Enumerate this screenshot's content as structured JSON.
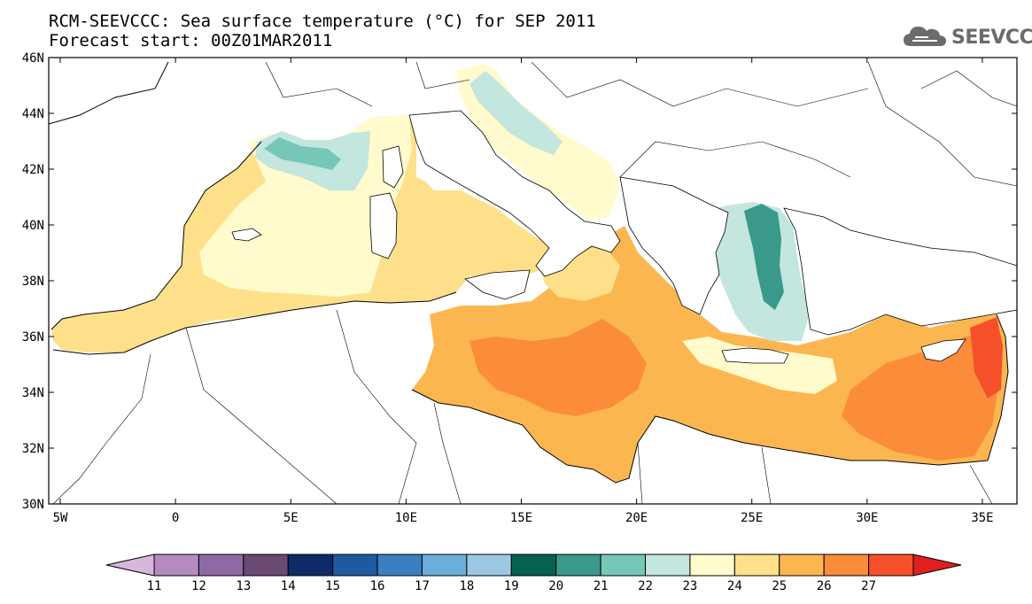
{
  "title": {
    "line1": "RCM-SEEVCCC: Sea surface temperature (°C) for SEP 2011",
    "line2": "Forecast start: 00Z01MAR2011"
  },
  "logo": {
    "text": "SEEVCCC",
    "icon": "cloud-icon"
  },
  "map": {
    "lat_range": [
      30,
      46
    ],
    "lon_range": [
      -5.5,
      36.5
    ],
    "lat_ticks": [
      "30N",
      "32N",
      "34N",
      "36N",
      "38N",
      "40N",
      "42N",
      "44N",
      "46N"
    ],
    "lon_ticks": [
      "5W",
      "0",
      "5E",
      "10E",
      "15E",
      "20E",
      "25E",
      "30E",
      "35E"
    ]
  },
  "colorbar": {
    "labels": [
      "11",
      "12",
      "13",
      "14",
      "15",
      "16",
      "17",
      "18",
      "19",
      "20",
      "21",
      "22",
      "23",
      "24",
      "25",
      "26",
      "27"
    ],
    "colors": [
      "#d8b7df",
      "#b48ac1",
      "#8e6aa5",
      "#6a4a72",
      "#0e2b68",
      "#1d5aa0",
      "#3a7fc0",
      "#6aaedc",
      "#9cc8e4",
      "#06614e",
      "#3a998b",
      "#76c7b8",
      "#c3e6df",
      "#fffbcc",
      "#ffe08a",
      "#fcb650",
      "#fb8c3a",
      "#f5502a",
      "#e02020"
    ]
  }
}
